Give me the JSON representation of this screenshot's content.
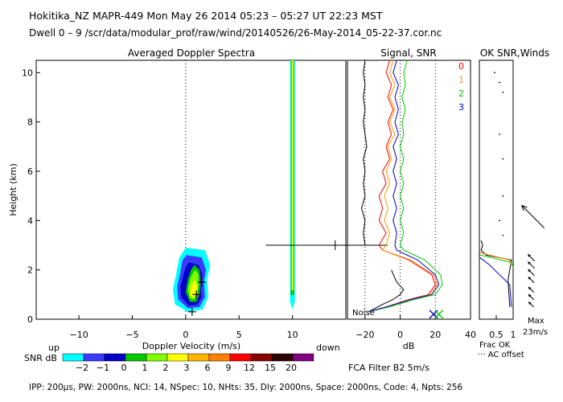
{
  "header": {
    "line1": "Hokitika_NZ  MAPR-449  Mon May 26 2014 05:23 – 05:27 UT 22:23 MST",
    "line2": "Dwell  0 – 9   /scr/data/modular_prof/raw/wind/20140526/26-May-2014_05-22-37.cor.nc"
  },
  "footer": {
    "params": "IPP: 200μs,  PW: 2000ns,  NCI:  14,  NSpec: 10, NHts: 35,  Dly: 2000ns,  Space: 2000ns,  Code: 4,  Npts: 256",
    "filter": "FCA Filter B2  5m/s"
  },
  "colors": {
    "snr_scale": [
      "#00ffff",
      "#3b3bff",
      "#0000c8",
      "#00c800",
      "#7fff00",
      "#ffff00",
      "#ffb400",
      "#ff7f00",
      "#ff0000",
      "#8b0000",
      "#2b0000",
      "#800080"
    ]
  },
  "chart_data": [
    {
      "type": "heatmap",
      "title": "Averaged Doppler Spectra",
      "xlabel": "Doppler Velocity (m/s)",
      "ylabel": "Height (km)",
      "xlim": [
        -14,
        15
      ],
      "ylim": [
        0,
        10.5
      ],
      "xticks": [
        "−10",
        "−5",
        "0",
        "5",
        "10"
      ],
      "xtick_values": [
        -10,
        -5,
        0,
        5,
        10
      ],
      "yticks": [
        "0",
        "2",
        "4",
        "6",
        "8",
        "10"
      ],
      "ytick_values": [
        0,
        2,
        4,
        6,
        8,
        10
      ],
      "left_label": "up",
      "right_label": "down",
      "markers": [
        {
          "velocity": 1.0,
          "height": 1.0
        },
        {
          "velocity": 1.5,
          "height": 1.5
        },
        {
          "velocity": 0.6,
          "height": 0.3
        }
      ],
      "horizontal_line": {
        "height": 3.0,
        "x_start": 7.5,
        "tick_at": 14.0
      },
      "colorbar": {
        "label": "SNR dB",
        "tick_labels": [
          "−2",
          "−1",
          "0",
          "1",
          "2",
          "3",
          "6",
          "9",
          "12",
          "15",
          "20"
        ]
      }
    },
    {
      "type": "line",
      "title": "Signal, SNR",
      "xlabel": "dB",
      "xlim": [
        -30,
        40
      ],
      "ylim": [
        0,
        10.5
      ],
      "xticks": [
        "−20",
        "0",
        "20",
        "40"
      ],
      "xtick_values": [
        -20,
        0,
        20,
        40
      ],
      "noise_label": "Noise",
      "series": [
        {
          "name": "Noise",
          "color": "#000000",
          "points": [
            [
              -20,
              10.5
            ],
            [
              -21,
              10
            ],
            [
              -20,
              9.5
            ],
            [
              -21,
              9
            ],
            [
              -20,
              8.5
            ],
            [
              -21,
              8
            ],
            [
              -20,
              7.5
            ],
            [
              -19,
              7
            ],
            [
              -21,
              6.5
            ],
            [
              -20,
              6
            ],
            [
              -21,
              5.5
            ],
            [
              -20,
              5
            ],
            [
              -22,
              4.5
            ],
            [
              -20,
              4
            ],
            [
              -21,
              3.5
            ],
            [
              -20,
              3
            ],
            [
              -10,
              3
            ]
          ]
        },
        {
          "name": "Noise low",
          "color": "#000000",
          "points": [
            [
              -5,
              2
            ],
            [
              -2,
              1.5
            ],
            [
              2,
              1.2
            ],
            [
              0,
              1.0
            ],
            [
              -4,
              0.8
            ],
            [
              -10,
              0.6
            ],
            [
              -18,
              0.3
            ]
          ]
        },
        {
          "name": "0",
          "color": "#ff0000",
          "points": [
            [
              -6,
              10.5
            ],
            [
              -8,
              10
            ],
            [
              -5,
              9.5
            ],
            [
              -7,
              9
            ],
            [
              -4,
              8.5
            ],
            [
              -7,
              8
            ],
            [
              -5,
              7.5
            ],
            [
              -8,
              7
            ],
            [
              -6,
              6.5
            ],
            [
              -10,
              6
            ],
            [
              -8,
              5.5
            ],
            [
              -12,
              5
            ],
            [
              -10,
              4.5
            ],
            [
              -12,
              4
            ],
            [
              -8,
              3.5
            ],
            [
              -12,
              3
            ],
            [
              -10,
              2.8
            ],
            [
              5,
              2.4
            ],
            [
              18,
              1.8
            ],
            [
              20,
              1.4
            ],
            [
              16,
              1.0
            ],
            [
              5,
              0.8
            ],
            [
              -8,
              0.5
            ],
            [
              -18,
              0.3
            ]
          ]
        },
        {
          "name": "1",
          "color": "#ff9900",
          "points": [
            [
              -4,
              10.5
            ],
            [
              -6,
              10
            ],
            [
              -3,
              9.5
            ],
            [
              -6,
              9
            ],
            [
              -3,
              8.5
            ],
            [
              -6,
              8
            ],
            [
              -3,
              7.5
            ],
            [
              -7,
              7
            ],
            [
              -5,
              6.5
            ],
            [
              -8,
              6
            ],
            [
              -6,
              5.5
            ],
            [
              -9,
              5
            ],
            [
              -7,
              4.5
            ],
            [
              -9,
              4
            ],
            [
              -6,
              3.5
            ],
            [
              -8,
              3
            ],
            [
              -10,
              2.8
            ],
            [
              6,
              2.4
            ],
            [
              19,
              1.8
            ],
            [
              21,
              1.4
            ],
            [
              17,
              1.0
            ],
            [
              6,
              0.8
            ],
            [
              -7,
              0.5
            ],
            [
              -18,
              0.3
            ]
          ]
        },
        {
          "name": "2",
          "color": "#00c800",
          "points": [
            [
              4,
              10.5
            ],
            [
              2,
              10
            ],
            [
              3,
              9.5
            ],
            [
              1,
              9
            ],
            [
              3,
              8.5
            ],
            [
              1,
              8
            ],
            [
              2,
              7.5
            ],
            [
              0,
              7
            ],
            [
              2,
              6.5
            ],
            [
              0,
              6
            ],
            [
              2,
              5.5
            ],
            [
              0,
              5
            ],
            [
              2,
              4.5
            ],
            [
              0,
              4
            ],
            [
              2,
              3.5
            ],
            [
              0,
              3
            ],
            [
              2,
              2.8
            ],
            [
              14,
              2.4
            ],
            [
              23,
              1.8
            ],
            [
              24,
              1.4
            ],
            [
              20,
              1.0
            ],
            [
              8,
              0.8
            ],
            [
              -6,
              0.5
            ],
            [
              -18,
              0.3
            ]
          ]
        },
        {
          "name": "3",
          "color": "#0000c8",
          "points": [
            [
              -2,
              10.5
            ],
            [
              -4,
              10
            ],
            [
              -1,
              9.5
            ],
            [
              -3,
              9
            ],
            [
              -1,
              8.5
            ],
            [
              -3,
              8
            ],
            [
              -1,
              7.5
            ],
            [
              -4,
              7
            ],
            [
              -2,
              6.5
            ],
            [
              -4,
              6
            ],
            [
              -2,
              5.5
            ],
            [
              -4,
              5
            ],
            [
              -2,
              4.5
            ],
            [
              -4,
              4
            ],
            [
              -2,
              3.5
            ],
            [
              -3,
              3
            ],
            [
              -2,
              2.8
            ],
            [
              10,
              2.4
            ],
            [
              20,
              1.8
            ],
            [
              22,
              1.4
            ],
            [
              18,
              1.0
            ],
            [
              6,
              0.8
            ],
            [
              -8,
              0.5
            ],
            [
              -18,
              0.3
            ]
          ]
        }
      ],
      "markers": [
        {
          "x": 19,
          "y": 0.2,
          "color": "#0000c8"
        },
        {
          "x": 22,
          "y": 0.2,
          "color": "#00c800"
        }
      ]
    },
    {
      "type": "line",
      "title": "OK SNR,Winds",
      "legend": [
        {
          "label": "0",
          "color": "#ff0000"
        },
        {
          "label": "1",
          "color": "#ff9900"
        },
        {
          "label": "2",
          "color": "#00c800"
        },
        {
          "label": "3",
          "color": "#0000c8"
        }
      ],
      "xlim": [
        0,
        1.0
      ],
      "ylim": [
        0,
        10.5
      ],
      "xticks": [
        "0.5",
        "1"
      ],
      "xtick_values": [
        0.5,
        1.0
      ],
      "xlabel": "Frac OK",
      "footnote": "··· AC offset",
      "max_label": "Max",
      "max_value": "23m/s",
      "frac_series": [
        {
          "name": "black",
          "color": "#000000",
          "points": [
            [
              0.05,
              3.2
            ],
            [
              0.1,
              3.0
            ],
            [
              0.05,
              2.8
            ],
            [
              0.2,
              2.6
            ],
            [
              0.95,
              2.4
            ],
            [
              0.9,
              2.0
            ],
            [
              0.85,
              1.6
            ],
            [
              0.9,
              0.5
            ]
          ]
        },
        {
          "name": "0",
          "color": "#ff0000",
          "points": [
            [
              0.02,
              2.7
            ],
            [
              0.3,
              2.6
            ],
            [
              0.9,
              2.4
            ],
            [
              0.95,
              2.2
            ]
          ]
        },
        {
          "name": "1",
          "color": "#ff9900",
          "points": [
            [
              0.02,
              2.7
            ],
            [
              0.3,
              2.6
            ],
            [
              0.9,
              2.4
            ],
            [
              0.95,
              2.2
            ]
          ]
        },
        {
          "name": "2",
          "color": "#00c800",
          "points": [
            [
              0.02,
              2.6
            ],
            [
              0.35,
              2.5
            ],
            [
              0.95,
              2.3
            ],
            [
              1.0,
              2.1
            ]
          ]
        },
        {
          "name": "3",
          "color": "#0000c8",
          "points": [
            [
              0.02,
              2.5
            ],
            [
              0.3,
              2.2
            ],
            [
              0.6,
              1.8
            ],
            [
              0.9,
              1.4
            ],
            [
              0.95,
              0.5
            ]
          ]
        }
      ],
      "dots": [
        [
          0.45,
          10.0
        ],
        [
          0.6,
          9.6
        ],
        [
          0.7,
          9.2
        ],
        [
          0.6,
          7.5
        ],
        [
          0.7,
          6.5
        ],
        [
          0.7,
          5.0
        ],
        [
          0.6,
          4.0
        ],
        [
          0.7,
          3.4
        ]
      ],
      "wind_barbs": [
        {
          "height": 4.2,
          "speed": 23,
          "direction": "large"
        },
        {
          "height": 2.5,
          "speed": 8
        },
        {
          "height": 2.2,
          "speed": 8
        },
        {
          "height": 1.9,
          "speed": 7
        },
        {
          "height": 1.6,
          "speed": 6
        },
        {
          "height": 1.2,
          "speed": 5
        },
        {
          "height": 0.9,
          "speed": 5
        },
        {
          "height": 0.6,
          "speed": 4
        }
      ]
    }
  ]
}
